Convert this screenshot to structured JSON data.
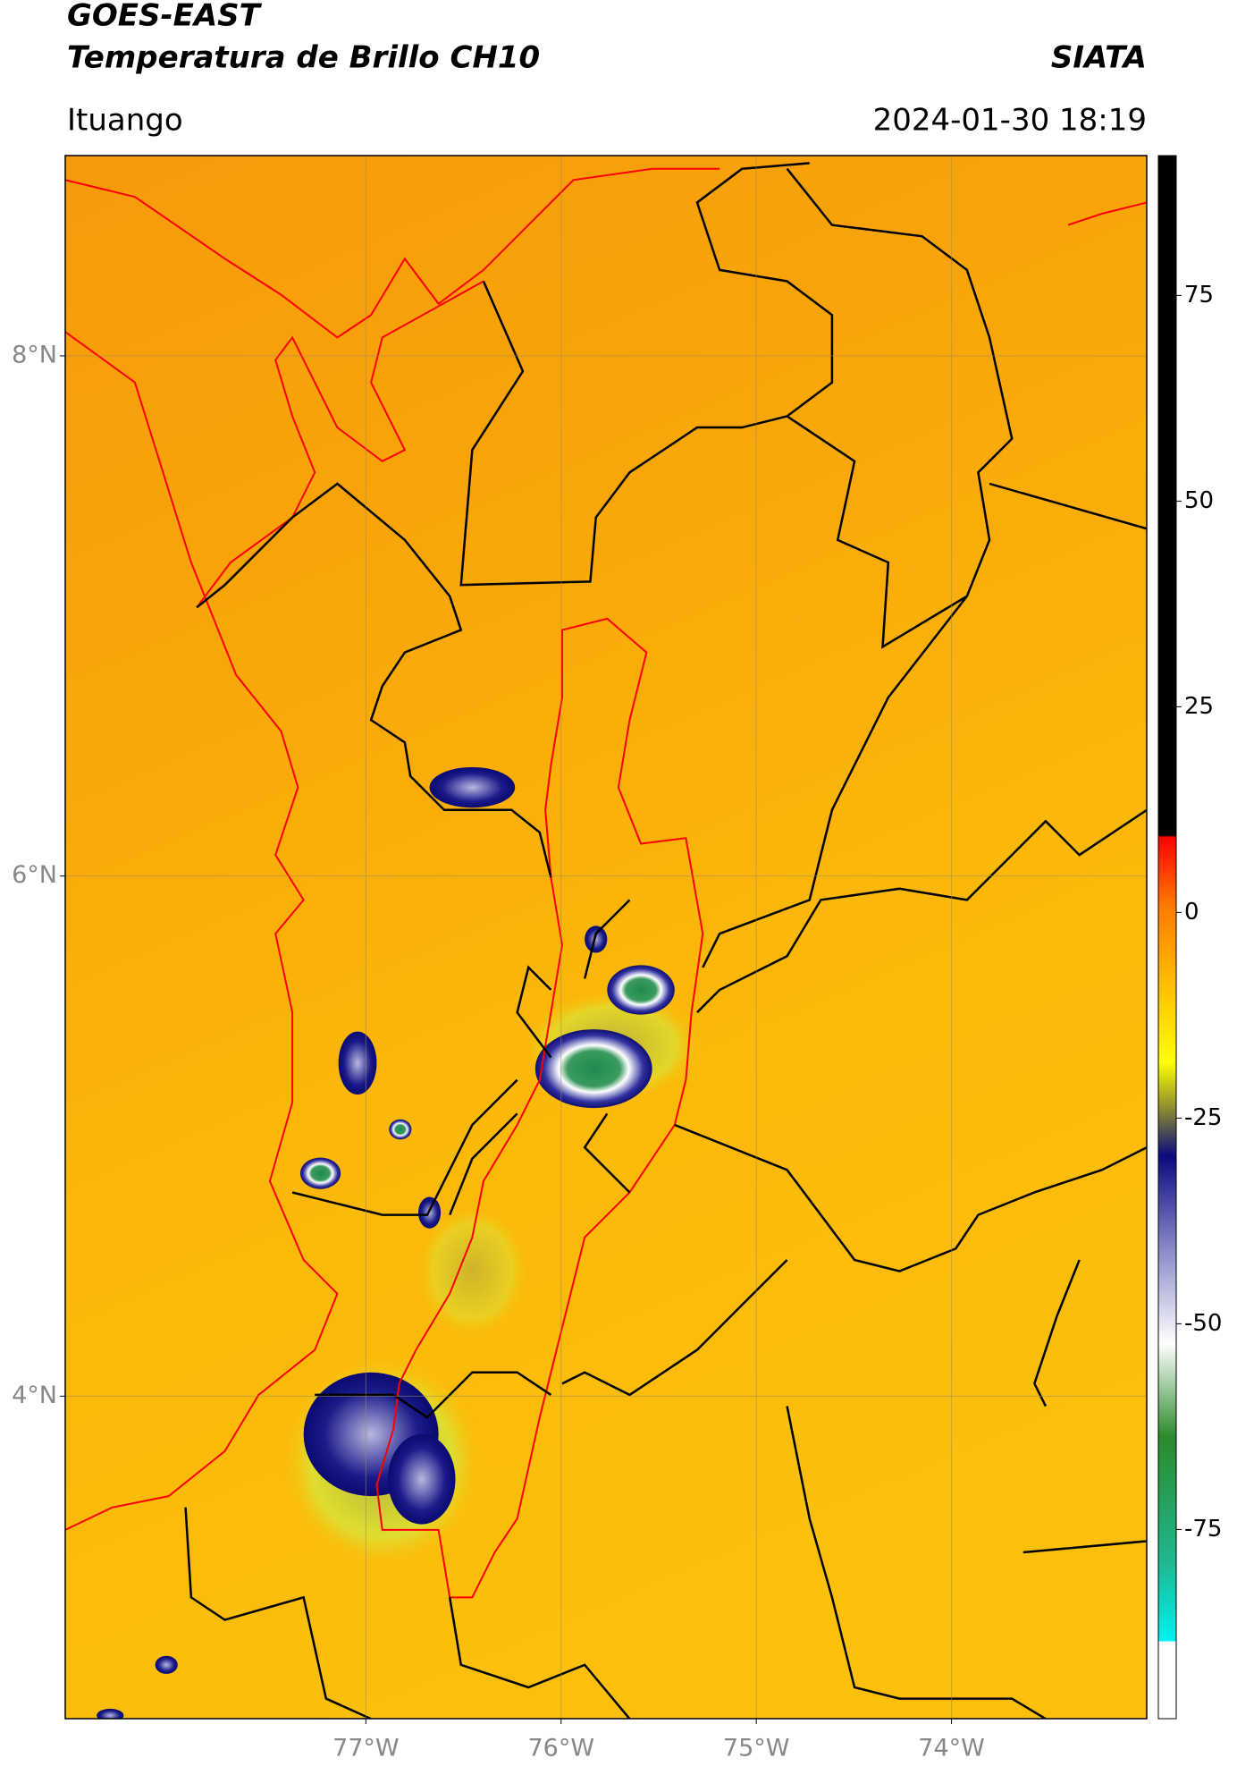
{
  "header": {
    "title": "GOES-EAST",
    "subtitle": "Temperatura de Brillo CH10",
    "source": "SIATA",
    "location": "Ituango",
    "timestamp": "2024-01-30 18:19"
  },
  "map": {
    "lon_range": [
      -78.54,
      -73.0
    ],
    "lat_range": [
      2.76,
      8.77
    ],
    "lat_ticks": [
      {
        "value": 8,
        "label": "8°N"
      },
      {
        "value": 6,
        "label": "6°N"
      },
      {
        "value": 4,
        "label": "4°N"
      }
    ],
    "lon_ticks": [
      {
        "value": -77,
        "label": "77°W"
      },
      {
        "value": -76,
        "label": "76°W"
      },
      {
        "value": -75,
        "label": "75°W"
      },
      {
        "value": -74,
        "label": "74°W"
      }
    ],
    "grid": true
  },
  "colorbar": {
    "range": [
      -98,
      92
    ],
    "ticks": [
      75,
      50,
      25,
      0,
      -25,
      -50,
      -75
    ]
  }
}
